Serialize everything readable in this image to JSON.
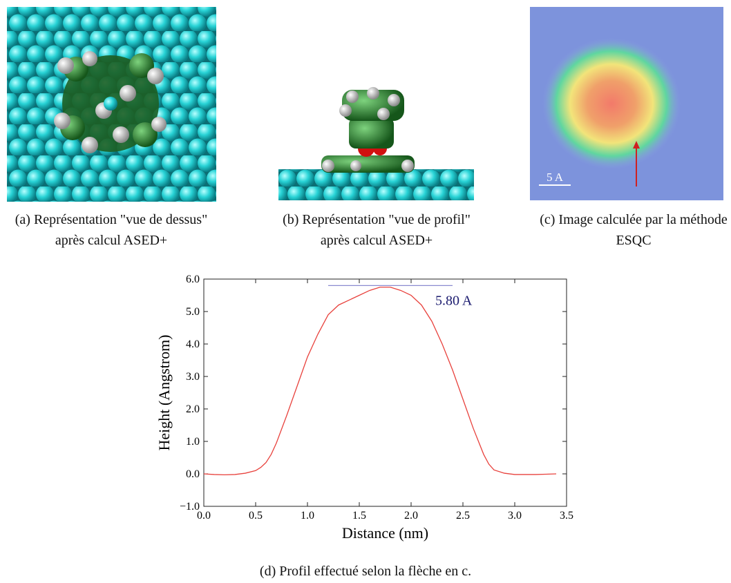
{
  "figures": [
    {
      "caption": "(a) Représentation \"vue de dessus\" après calcul ASED+"
    },
    {
      "caption": "(b) Représentation \"vue de profil\" après calcul ASED+"
    },
    {
      "caption": "(c) Image calculée par la méthode ESQC",
      "scale_label": "5 A"
    }
  ],
  "chart_data": {
    "type": "line",
    "x_label": "Distance (nm)",
    "y_label": "Height (Angstrom)",
    "x": [
      0,
      0.1,
      0.2,
      0.3,
      0.4,
      0.5,
      0.55,
      0.6,
      0.65,
      0.7,
      0.8,
      0.9,
      1.0,
      1.1,
      1.2,
      1.3,
      1.4,
      1.5,
      1.6,
      1.7,
      1.8,
      1.9,
      2.0,
      2.1,
      2.2,
      2.3,
      2.4,
      2.5,
      2.6,
      2.7,
      2.75,
      2.8,
      2.9,
      3.0,
      3.1,
      3.2,
      3.3,
      3.4
    ],
    "series": [
      {
        "color": "#e8413c",
        "values": [
          0,
          -0.02,
          -0.03,
          -0.02,
          0.02,
          0.1,
          0.2,
          0.35,
          0.6,
          0.95,
          1.8,
          2.7,
          3.6,
          4.3,
          4.9,
          5.2,
          5.35,
          5.5,
          5.65,
          5.75,
          5.75,
          5.65,
          5.5,
          5.2,
          4.7,
          4.0,
          3.2,
          2.3,
          1.4,
          0.6,
          0.3,
          0.12,
          0.02,
          -0.02,
          -0.02,
          -0.02,
          -0.01,
          0
        ]
      }
    ],
    "xlim": [
      0,
      3.5
    ],
    "ylim": [
      -1,
      6
    ],
    "xticks": [
      {
        "value": 0,
        "label": "0.0"
      },
      {
        "value": 0.5,
        "label": "0.5"
      },
      {
        "value": 1,
        "label": "1.0"
      },
      {
        "value": 1.5,
        "label": "1.5"
      },
      {
        "value": 2,
        "label": "2.0"
      },
      {
        "value": 2.5,
        "label": "2.5"
      },
      {
        "value": 3,
        "label": "3.0"
      },
      {
        "value": 3.5,
        "label": "3.5"
      }
    ],
    "yticks": [
      {
        "value": -1,
        "label": "−1.0"
      },
      {
        "value": 0,
        "label": "0.0"
      },
      {
        "value": 1,
        "label": "1.0"
      },
      {
        "value": 2,
        "label": "2.0"
      },
      {
        "value": 3,
        "label": "3.0"
      },
      {
        "value": 4,
        "label": "4.0"
      },
      {
        "value": 5,
        "label": "5.0"
      },
      {
        "value": 6,
        "label": "6.0"
      }
    ],
    "reference_line": {
      "y": 5.8,
      "xrange": [
        1.2,
        2.4
      ],
      "label": "5.80 A",
      "color": "#8a8ad0"
    },
    "grid": false
  },
  "chart_caption": "(d) Profil effectué selon la flèche en c."
}
